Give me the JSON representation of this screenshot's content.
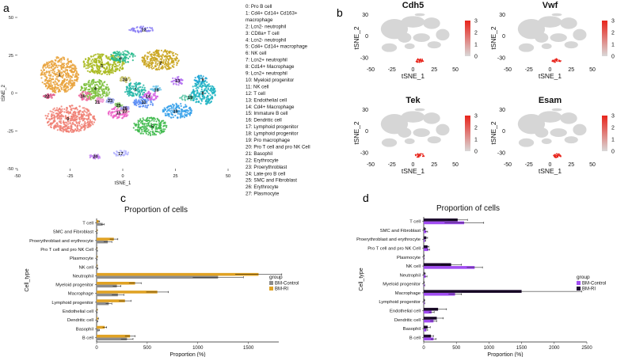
{
  "panel_labels": {
    "a": "a",
    "b": "b",
    "c": "c",
    "d": "d"
  },
  "chart_data": [
    {
      "id": "a",
      "type": "scatter",
      "title": "",
      "xlabel": "tSNE_1",
      "ylabel": "tSNE_2",
      "xlim": [
        -50,
        50
      ],
      "ylim": [
        -50,
        50
      ],
      "x_ticks": [
        -50,
        -25,
        0,
        25,
        50
      ],
      "y_ticks": [
        -50,
        -25,
        0,
        25,
        50
      ],
      "cluster_labels": [
        {
          "id": "0",
          "x": -26,
          "y": -17
        },
        {
          "id": "1",
          "x": -30,
          "y": 12
        },
        {
          "id": "2",
          "x": 18,
          "y": 20
        },
        {
          "id": "3",
          "x": -10,
          "y": 18
        },
        {
          "id": "4",
          "x": -13,
          "y": 3
        },
        {
          "id": "5",
          "x": 14,
          "y": -22
        },
        {
          "id": "6",
          "x": -1,
          "y": 23
        },
        {
          "id": "7",
          "x": 6,
          "y": 2
        },
        {
          "id": "8",
          "x": 38,
          "y": 0
        },
        {
          "id": "9",
          "x": 38,
          "y": 9
        },
        {
          "id": "10",
          "x": 25,
          "y": -12
        },
        {
          "id": "11",
          "x": 10,
          "y": -6
        },
        {
          "id": "12",
          "x": 10,
          "y": 42
        },
        {
          "id": "13",
          "x": 26,
          "y": 8
        },
        {
          "id": "14",
          "x": 12,
          "y": -2
        },
        {
          "id": "15",
          "x": -2,
          "y": -13
        },
        {
          "id": "16",
          "x": -19,
          "y": -2
        },
        {
          "id": "17",
          "x": -1,
          "y": -40
        },
        {
          "id": "18",
          "x": 16,
          "y": 2
        },
        {
          "id": "19",
          "x": 32,
          "y": -3
        },
        {
          "id": "20",
          "x": -13,
          "y": -42
        },
        {
          "id": "21",
          "x": -12,
          "y": -6
        },
        {
          "id": "22",
          "x": -36,
          "y": -2
        },
        {
          "id": "23",
          "x": -6,
          "y": -5
        },
        {
          "id": "24",
          "x": 1,
          "y": 9
        },
        {
          "id": "25",
          "x": -2,
          "y": -8
        },
        {
          "id": "26",
          "x": 1,
          "y": -10
        },
        {
          "id": "27",
          "x": 1,
          "y": -12
        }
      ],
      "legend": [
        "0: Pro B cell",
        "1: Cd4+ Cd14+ Cd163+",
        "macrophage",
        "2: Lcn2- neutrophil",
        "3: CD8a+ T cell",
        "4: Lcn2- neutrophil",
        "5: Cd4+ Cd14+ macrophage",
        "6: NK cell",
        "7: Lcn2+ neutrophil",
        "8: Cd14+ Macrophage",
        "9: Lcn2+ neutrophil",
        "10: Myeloid progenitor",
        "11: NK cell",
        "12: T cell",
        "13: Endothelial cell",
        "14: Cd4+ Macrophage",
        "15: Immature B cell",
        "16: Dendritic cell",
        "17: Lymphoid progenitor",
        "18: Lymphoid progenitor",
        "19: Pro macrophage",
        "20: Pro T cell and pro NK Cell",
        "21: Basophil",
        "22: Erythrocyte",
        "23: Proerythroblast",
        "24: Late-pro B cell",
        "25: SMC and Fibroblast",
        "26: Erythrocyte",
        "27: Plasmocyte"
      ]
    },
    {
      "id": "b",
      "type": "scatter",
      "subplots": [
        "Cdh5",
        "Vwf",
        "Tek",
        "Esam"
      ],
      "xlabel": "tSNE_1",
      "ylabel": "tSNE_2",
      "xlim": [
        -50,
        50
      ],
      "ylim": [
        -40,
        35
      ],
      "x_ticks": [
        -50,
        -25,
        0,
        25,
        50
      ],
      "y_ticks": [
        -30,
        0,
        30
      ],
      "colorbar_ticks": [
        0,
        1,
        2,
        3
      ],
      "colorbar_colors": [
        "#d9d9d9",
        "#e8241b"
      ]
    },
    {
      "id": "c",
      "type": "bar",
      "orientation": "horizontal",
      "title": "Proportion of cells",
      "xlabel": "Proportion (%)",
      "ylabel": "Cell_type",
      "xlim": [
        0,
        1800
      ],
      "x_ticks": [
        0,
        500,
        1000,
        1500
      ],
      "categories": [
        "T cell",
        "SMC and Fibroblast",
        "Proerythroblast and erythrocyte",
        "Pro T cell and pro NK Cell",
        "Plasmocyte",
        "NK cell",
        "Neutrophil",
        "Myeloid progenitor",
        "Macrophage",
        "Lymphoid progenitor",
        "Endothelial cell",
        "Dendritic cell",
        "Basophil",
        "B cell"
      ],
      "series": [
        {
          "name": "BM-Control",
          "color": "#8c8c8c",
          "values": [
            60,
            3,
            110,
            5,
            3,
            8,
            1200,
            200,
            210,
            120,
            3,
            8,
            20,
            300
          ],
          "errors": [
            15,
            2,
            40,
            3,
            2,
            5,
            250,
            40,
            60,
            30,
            2,
            4,
            8,
            60
          ]
        },
        {
          "name": "BM-RI",
          "color": "#e0a224",
          "values": [
            20,
            5,
            170,
            3,
            5,
            5,
            1600,
            380,
            600,
            280,
            5,
            12,
            80,
            330
          ],
          "errors": [
            10,
            3,
            40,
            2,
            3,
            3,
            230,
            60,
            110,
            60,
            3,
            6,
            20,
            50
          ]
        }
      ],
      "legend_title": "group"
    },
    {
      "id": "d",
      "type": "bar",
      "orientation": "horizontal",
      "title": "Proportion of cells",
      "xlabel": "Proportion (%)",
      "ylabel": "Cell_type",
      "xlim": [
        0,
        2500
      ],
      "x_ticks": [
        0,
        500,
        1000,
        1500,
        2000,
        2500
      ],
      "categories": [
        "T cell",
        "SMC and Fibroblast",
        "Proerythroblast and erythrocyte",
        "Pro T cell and pro NK Cell",
        "Plasmocyte",
        "NK cell",
        "Neutrophil",
        "Myeloid progenitor",
        "Macrophage",
        "Lymphoid progenitor",
        "Endothelial cell",
        "Dendritic cell",
        "Basophil",
        "B cell"
      ],
      "series": [
        {
          "name": "BM-Control",
          "color": "#a14df2",
          "values": [
            620,
            40,
            20,
            70,
            5,
            780,
            30,
            10,
            480,
            10,
            120,
            150,
            40,
            150
          ],
          "errors": [
            300,
            20,
            10,
            20,
            3,
            120,
            20,
            5,
            100,
            5,
            40,
            50,
            20,
            40
          ]
        },
        {
          "name": "BM-RI",
          "color": "#1d0b2e",
          "values": [
            520,
            20,
            40,
            60,
            5,
            420,
            15,
            5,
            1500,
            10,
            220,
            200,
            60,
            110
          ],
          "errors": [
            150,
            10,
            20,
            20,
            3,
            160,
            10,
            3,
            920,
            5,
            130,
            100,
            40,
            40
          ]
        }
      ],
      "legend_title": "group"
    }
  ]
}
